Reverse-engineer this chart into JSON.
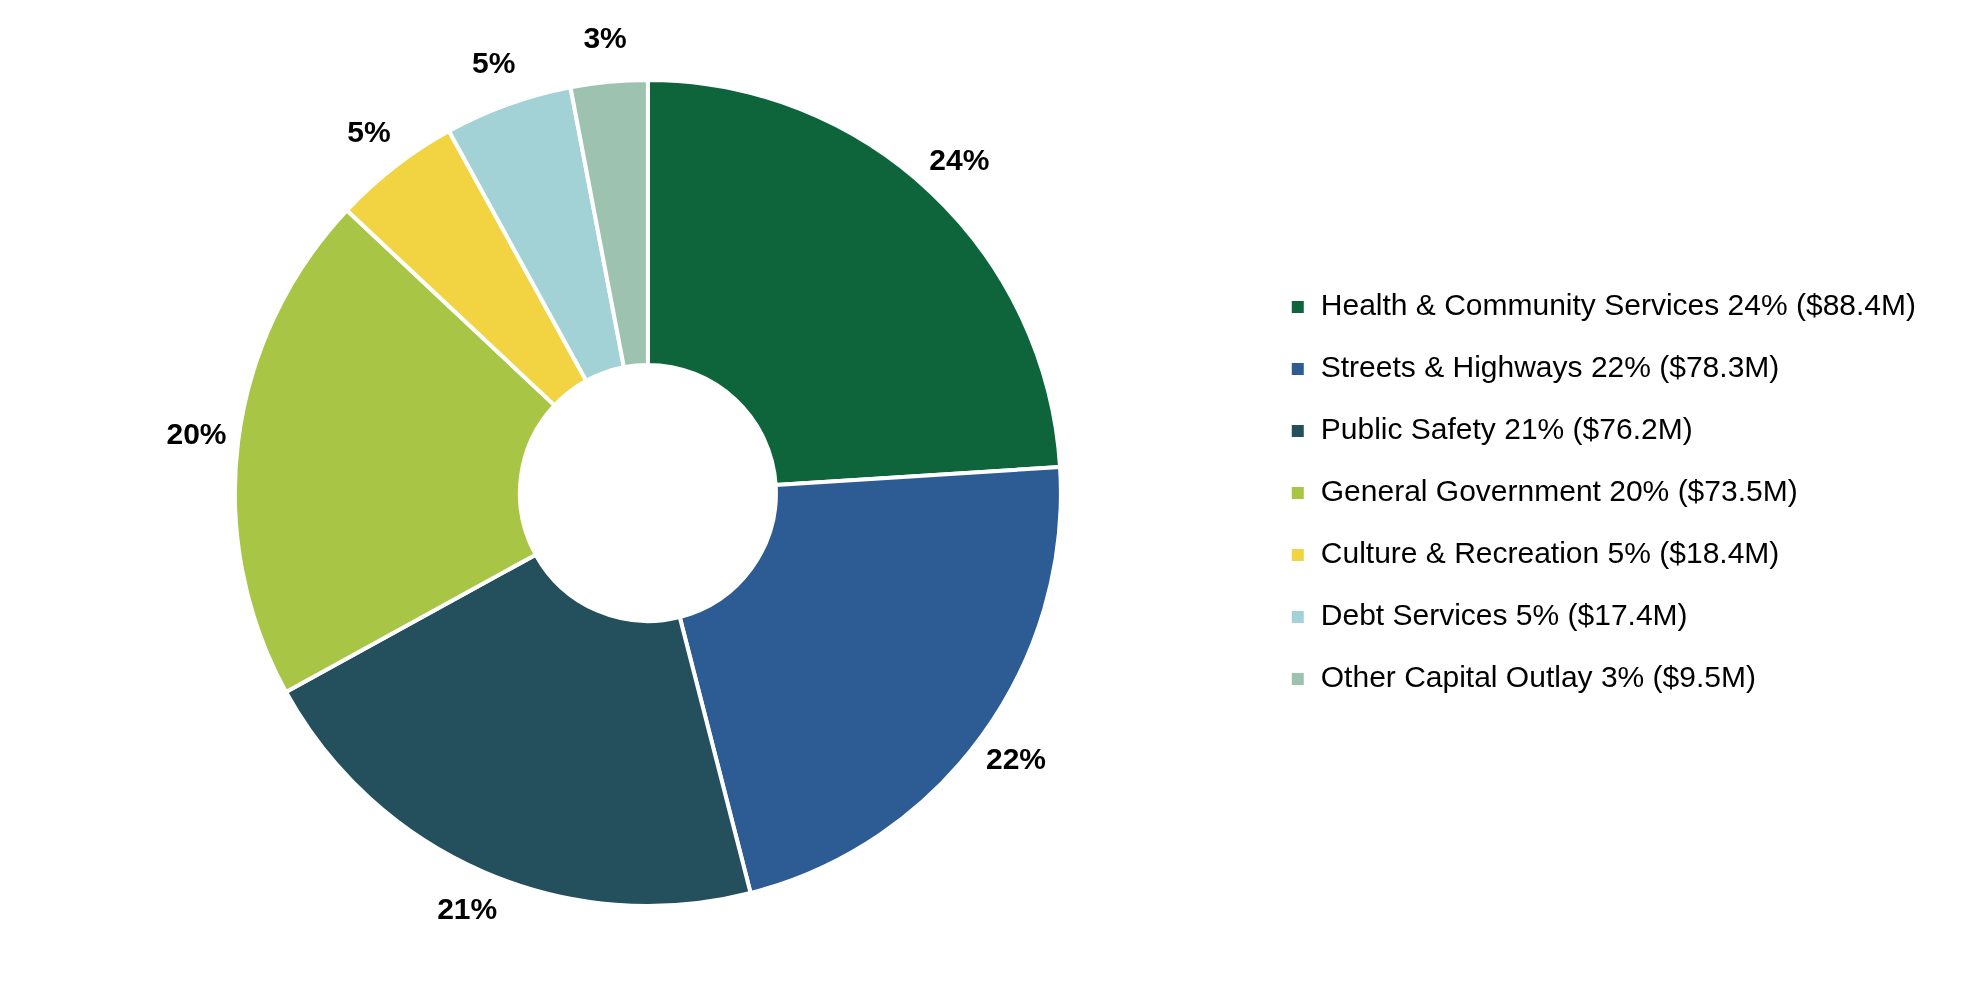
{
  "chart_data": {
    "type": "donut",
    "categories": [
      "Health & Community Services 24% ($88.4M)",
      "Streets & Highways 22% ($78.3M)",
      "Public Safety 21% ($76.2M)",
      "General Government 20% ($73.5M)",
      "Culture & Recreation 5% ($18.4M)",
      "Debt Services 5% ($17.4M)",
      "Other Capital Outlay 3% ($9.5M)"
    ],
    "values": [
      24,
      22,
      21,
      20,
      5,
      5,
      3
    ],
    "colors": [
      "#0e653b",
      "#2c5c93",
      "#244f5c",
      "#a8c546",
      "#f2d443",
      "#a3d2d6",
      "#9dc3b0"
    ],
    "value_labels": [
      "24%",
      "22%",
      "21%",
      "20%",
      "5%",
      "5%",
      "3%"
    ],
    "legend": "right"
  }
}
